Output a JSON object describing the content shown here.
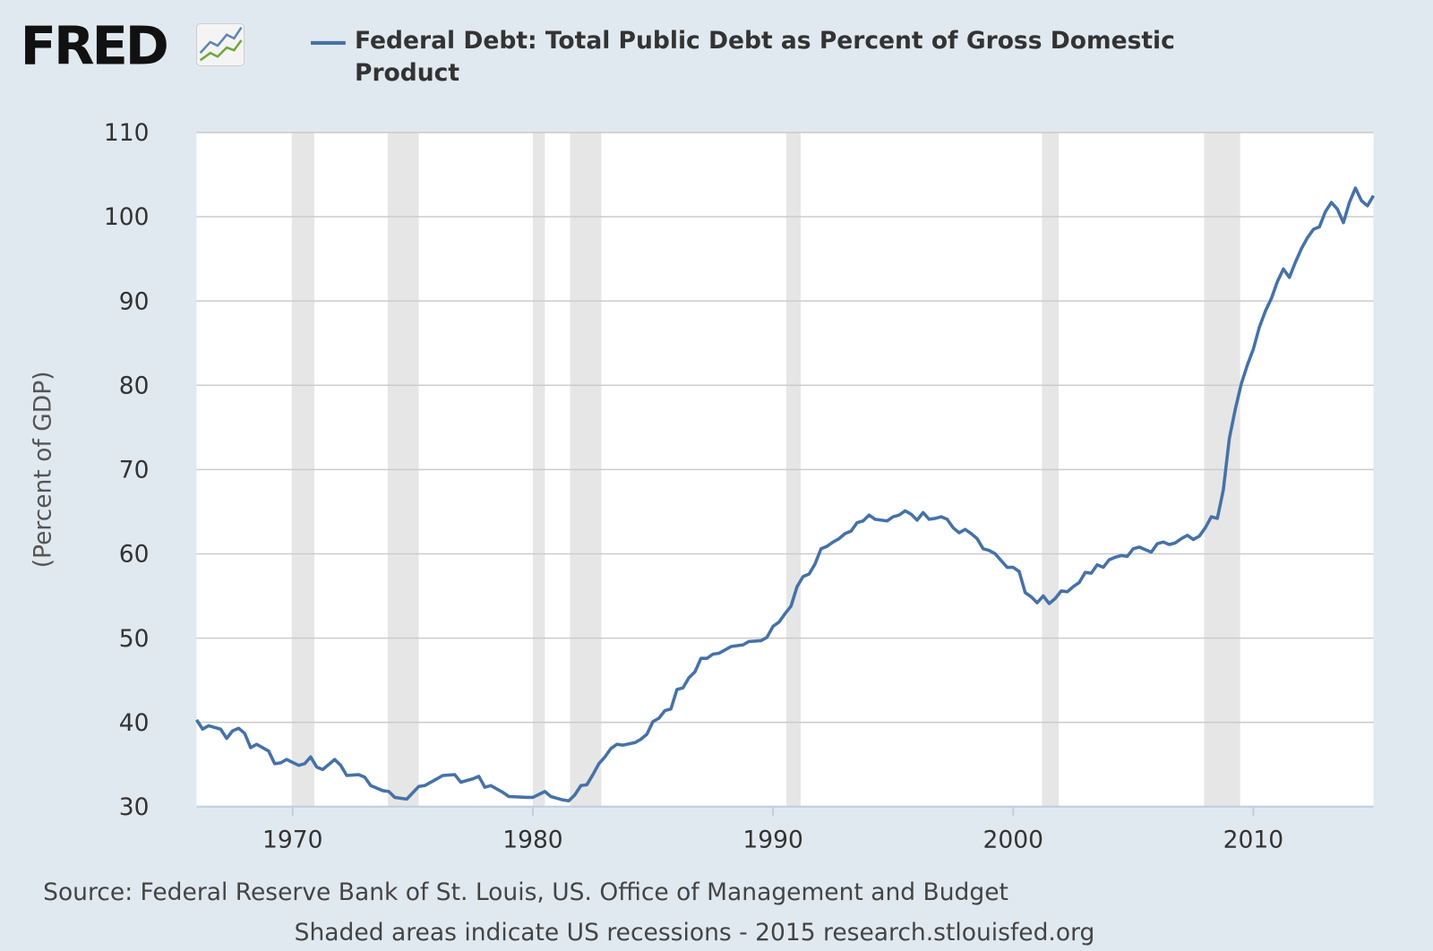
{
  "chart_data": {
    "type": "line",
    "logo": "FRED",
    "y_label": "(Percent of GDP)",
    "source": "Source: Federal Reserve Bank of St. Louis, US. Office of Management and Budget",
    "note": "Shaded areas indicate US recessions - 2015 research.stlouisfed.org",
    "xlim": [
      1966,
      2015
    ],
    "xticks": [
      1970,
      1980,
      1990,
      2000,
      2010
    ],
    "ylim": [
      30,
      110
    ],
    "yticks": [
      30,
      40,
      50,
      60,
      70,
      80,
      90,
      100,
      110
    ],
    "grid": true,
    "recession_color": "#e6e6e6",
    "recessions": [
      [
        1969.96,
        1970.9
      ],
      [
        1973.96,
        1975.25
      ],
      [
        1980.0,
        1980.5
      ],
      [
        1981.55,
        1982.85
      ],
      [
        1990.55,
        1991.15
      ],
      [
        2001.2,
        2001.9
      ],
      [
        2007.95,
        2009.45
      ]
    ],
    "x": [
      1966.0,
      1966.25,
      1966.5,
      1967.0,
      1967.25,
      1967.5,
      1967.75,
      1968.0,
      1968.25,
      1968.5,
      1969.0,
      1969.25,
      1969.5,
      1969.75,
      1970.25,
      1970.5,
      1970.75,
      1971.0,
      1971.25,
      1971.75,
      1972.0,
      1972.25,
      1972.75,
      1973.0,
      1973.25,
      1973.75,
      1974.0,
      1974.25,
      1974.75,
      1975.25,
      1975.5,
      1976.0,
      1976.25,
      1976.75,
      1977.0,
      1977.5,
      1977.75,
      1978.0,
      1978.25,
      1978.75,
      1979.0,
      1979.75,
      1980.0,
      1980.5,
      1980.75,
      1981.25,
      1981.5,
      1981.75,
      1982.0,
      1982.25,
      1982.5,
      1982.75,
      1983.0,
      1983.25,
      1983.5,
      1983.75,
      1984.25,
      1984.5,
      1984.75,
      1985.0,
      1985.25,
      1985.5,
      1985.75,
      1986.0,
      1986.25,
      1986.5,
      1986.75,
      1987.0,
      1987.25,
      1987.5,
      1987.75,
      1988.25,
      1988.75,
      1989.0,
      1989.5,
      1989.75,
      1990.0,
      1990.25,
      1990.5,
      1990.75,
      1991.0,
      1991.25,
      1991.5,
      1991.75,
      1992.0,
      1992.25,
      1992.5,
      1992.75,
      1993.0,
      1993.25,
      1993.5,
      1993.75,
      1994.0,
      1994.25,
      1994.75,
      1995.0,
      1995.25,
      1995.5,
      1995.75,
      1996.0,
      1996.25,
      1996.5,
      1996.75,
      1997.0,
      1997.25,
      1997.5,
      1997.75,
      1998.0,
      1998.25,
      1998.5,
      1998.75,
      1999.0,
      1999.25,
      1999.5,
      1999.75,
      2000.0,
      2000.25,
      2000.5,
      2000.75,
      2001.0,
      2001.25,
      2001.5,
      2001.75,
      2002.0,
      2002.25,
      2002.5,
      2002.75,
      2003.0,
      2003.25,
      2003.5,
      2003.75,
      2004.0,
      2004.25,
      2004.5,
      2004.75,
      2005.0,
      2005.25,
      2005.75,
      2006.0,
      2006.25,
      2006.5,
      2006.75,
      2007.0,
      2007.25,
      2007.5,
      2007.75,
      2008.0,
      2008.25,
      2008.5,
      2008.75,
      2009.0,
      2009.25,
      2009.5,
      2009.75,
      2010.0,
      2010.25,
      2010.5,
      2010.75,
      2011.0,
      2011.25,
      2011.5,
      2011.75,
      2012.0,
      2012.25,
      2012.5,
      2012.75,
      2013.0,
      2013.25,
      2013.5,
      2013.75,
      2014.0,
      2014.25,
      2014.5,
      2014.75,
      2015.0
    ],
    "series": [
      {
        "name": "Federal Debt: Total Public Debt as Percent of Gross Domestic Product",
        "color": "#4572a7",
        "values": [
          40.3,
          39.2,
          39.6,
          39.2,
          38.1,
          39.0,
          39.3,
          38.7,
          37.0,
          37.4,
          36.6,
          35.1,
          35.2,
          35.6,
          34.9,
          35.1,
          35.9,
          34.7,
          34.4,
          35.6,
          34.9,
          33.7,
          33.8,
          33.5,
          32.5,
          31.9,
          31.8,
          31.1,
          30.9,
          32.4,
          32.5,
          33.3,
          33.7,
          33.8,
          32.9,
          33.3,
          33.6,
          32.3,
          32.5,
          31.7,
          31.2,
          31.1,
          31.1,
          31.8,
          31.2,
          30.8,
          30.7,
          31.4,
          32.5,
          32.6,
          33.8,
          35.1,
          35.9,
          36.9,
          37.4,
          37.3,
          37.6,
          38.0,
          38.6,
          40.1,
          40.5,
          41.4,
          41.6,
          43.9,
          44.1,
          45.3,
          46.0,
          47.6,
          47.6,
          48.1,
          48.2,
          49.0,
          49.2,
          49.6,
          49.7,
          50.1,
          51.4,
          51.9,
          52.9,
          53.8,
          56.1,
          57.3,
          57.6,
          58.8,
          60.6,
          60.9,
          61.4,
          61.8,
          62.4,
          62.7,
          63.7,
          63.9,
          64.6,
          64.1,
          63.9,
          64.4,
          64.6,
          65.1,
          64.7,
          64.0,
          64.9,
          64.1,
          64.2,
          64.4,
          64.1,
          63.1,
          62.5,
          62.9,
          62.4,
          61.8,
          60.6,
          60.4,
          60.0,
          59.2,
          58.4,
          58.4,
          57.9,
          55.4,
          54.9,
          54.2,
          55.0,
          54.1,
          54.7,
          55.6,
          55.5,
          56.1,
          56.6,
          57.8,
          57.7,
          58.7,
          58.4,
          59.3,
          59.6,
          59.8,
          59.7,
          60.6,
          60.8,
          60.2,
          61.2,
          61.4,
          61.1,
          61.3,
          61.8,
          62.2,
          61.7,
          62.1,
          63.1,
          64.4,
          64.2,
          67.6,
          73.7,
          77.2,
          80.2,
          82.4,
          84.3,
          86.9,
          88.8,
          90.3,
          92.3,
          93.8,
          92.8,
          94.6,
          96.2,
          97.5,
          98.5,
          98.8,
          100.6,
          101.7,
          100.9,
          99.3,
          101.7,
          103.4,
          101.9,
          101.3,
          102.5
        ]
      }
    ]
  }
}
